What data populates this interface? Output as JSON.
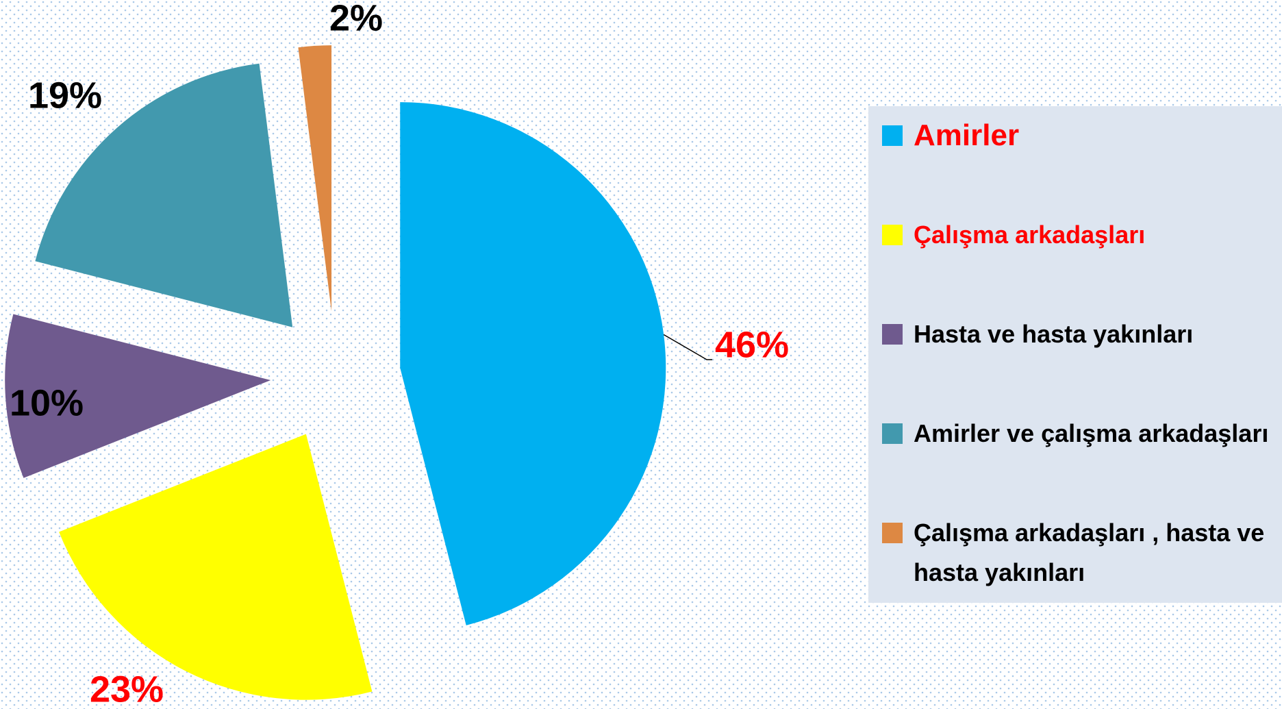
{
  "chart_data": {
    "type": "pie",
    "categories": [
      "Amirler",
      "Çalışma arkadaşları",
      "Hasta ve hasta yakınları",
      "Amirler ve çalışma arkadaşları",
      "Çalışma arkadaşları , hasta ve hasta yakınları"
    ],
    "values": [
      46,
      23,
      10,
      19,
      2
    ],
    "value_labels": [
      "46%",
      "23%",
      "10%",
      "19%",
      "2%"
    ],
    "colors": [
      "#00b0f0",
      "#ffff00",
      "#6f5a8e",
      "#4299ae",
      "#dd8843"
    ],
    "label_colors": [
      "#ff0000",
      "#ff0000",
      "#000000",
      "#000000",
      "#000000"
    ],
    "legend_text_colors": [
      "#ff0000",
      "#ff0000",
      "#000000",
      "#000000",
      "#000000"
    ],
    "legend": "right"
  }
}
